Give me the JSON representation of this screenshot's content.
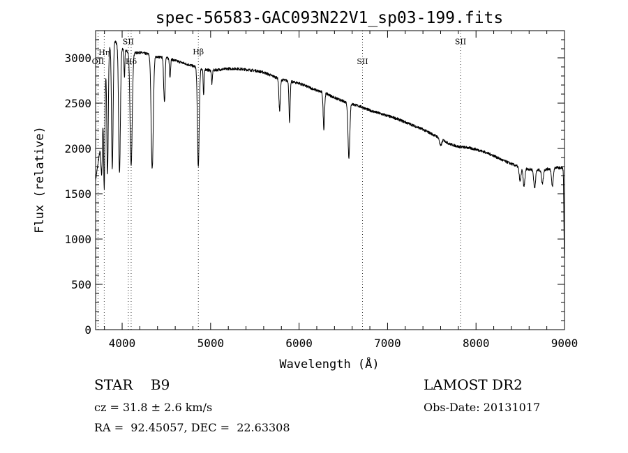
{
  "chart_data": {
    "type": "line",
    "title": "spec-56583-GAC093N22V1_sp03-199.fits",
    "xlabel": "Wavelength (Å)",
    "ylabel": "Flux (relative)",
    "xlim": [
      3700,
      9000
    ],
    "ylim": [
      0,
      3300
    ],
    "x_ticks": [
      4000,
      5000,
      6000,
      7000,
      8000,
      9000
    ],
    "y_ticks": [
      0,
      500,
      1000,
      1500,
      2000,
      2500,
      3000
    ],
    "continuum": [
      [
        3700,
        1650
      ],
      [
        3760,
        2050
      ],
      [
        3800,
        2800
      ],
      [
        3850,
        3100
      ],
      [
        3900,
        3200
      ],
      [
        3950,
        3150
      ],
      [
        4000,
        3100
      ],
      [
        4100,
        3050
      ],
      [
        4200,
        3060
      ],
      [
        4300,
        3040
      ],
      [
        4400,
        3010
      ],
      [
        4500,
        3000
      ],
      [
        4600,
        2970
      ],
      [
        4700,
        2940
      ],
      [
        4800,
        2910
      ],
      [
        4900,
        2880
      ],
      [
        5000,
        2860
      ],
      [
        5100,
        2870
      ],
      [
        5200,
        2880
      ],
      [
        5300,
        2880
      ],
      [
        5400,
        2870
      ],
      [
        5500,
        2860
      ],
      [
        5600,
        2840
      ],
      [
        5700,
        2800
      ],
      [
        5800,
        2760
      ],
      [
        5900,
        2740
      ],
      [
        6000,
        2720
      ],
      [
        6100,
        2680
      ],
      [
        6200,
        2640
      ],
      [
        6300,
        2610
      ],
      [
        6400,
        2560
      ],
      [
        6500,
        2520
      ],
      [
        6600,
        2490
      ],
      [
        6700,
        2460
      ],
      [
        6800,
        2420
      ],
      [
        6900,
        2390
      ],
      [
        7000,
        2360
      ],
      [
        7100,
        2330
      ],
      [
        7200,
        2290
      ],
      [
        7300,
        2250
      ],
      [
        7400,
        2210
      ],
      [
        7500,
        2160
      ],
      [
        7600,
        2110
      ],
      [
        7700,
        2050
      ],
      [
        7800,
        2020
      ],
      [
        7900,
        2010
      ],
      [
        8000,
        1990
      ],
      [
        8100,
        1960
      ],
      [
        8200,
        1920
      ],
      [
        8300,
        1870
      ],
      [
        8400,
        1830
      ],
      [
        8500,
        1790
      ],
      [
        8600,
        1770
      ],
      [
        8700,
        1760
      ],
      [
        8800,
        1770
      ],
      [
        8900,
        1790
      ],
      [
        9000,
        1780
      ]
    ],
    "absorption_lines": [
      [
        3770,
        500,
        8
      ],
      [
        3798,
        1200,
        7
      ],
      [
        3835,
        1300,
        8
      ],
      [
        3889,
        1400,
        9
      ],
      [
        3970,
        1400,
        10
      ],
      [
        4026,
        300,
        5
      ],
      [
        4102,
        1250,
        12
      ],
      [
        4340,
        1250,
        12
      ],
      [
        4471,
        250,
        6
      ],
      [
        4481,
        400,
        6
      ],
      [
        4541,
        200,
        6
      ],
      [
        4861,
        1100,
        10
      ],
      [
        4921,
        300,
        5
      ],
      [
        5015,
        150,
        5
      ],
      [
        5780,
        350,
        8
      ],
      [
        5890,
        300,
        6
      ],
      [
        5896,
        200,
        6
      ],
      [
        6280,
        400,
        8
      ],
      [
        6563,
        600,
        10
      ],
      [
        7600,
        80,
        12
      ],
      [
        8498,
        150,
        10
      ],
      [
        8542,
        200,
        10
      ],
      [
        8662,
        200,
        10
      ],
      [
        8750,
        150,
        10
      ],
      [
        8863,
        200,
        10
      ],
      [
        9000,
        1000,
        6
      ]
    ],
    "reference_lines": [
      {
        "x": 3727,
        "label": "OII",
        "y": 2930
      },
      {
        "x": 3797,
        "label": "Hη",
        "y": 3030
      },
      {
        "x": 4070,
        "label": "SII",
        "y": 3150
      },
      {
        "x": 4102,
        "label": "Hδ",
        "y": 2930
      },
      {
        "x": 4861,
        "label": "Hβ",
        "y": 3040
      },
      {
        "x": 6717,
        "label": "SII",
        "y": 2930
      },
      {
        "x": 7825,
        "label": "SII",
        "y": 3150
      }
    ]
  },
  "info": {
    "object_class_label": "STAR",
    "object_subclass": "B9",
    "survey": "LAMOST DR2",
    "cz": "cz = 31.8 ± 2.6 km/s",
    "obs_date": "Obs-Date: 20131017",
    "coords": "RA =  92.45057, DEC =  22.63308"
  }
}
